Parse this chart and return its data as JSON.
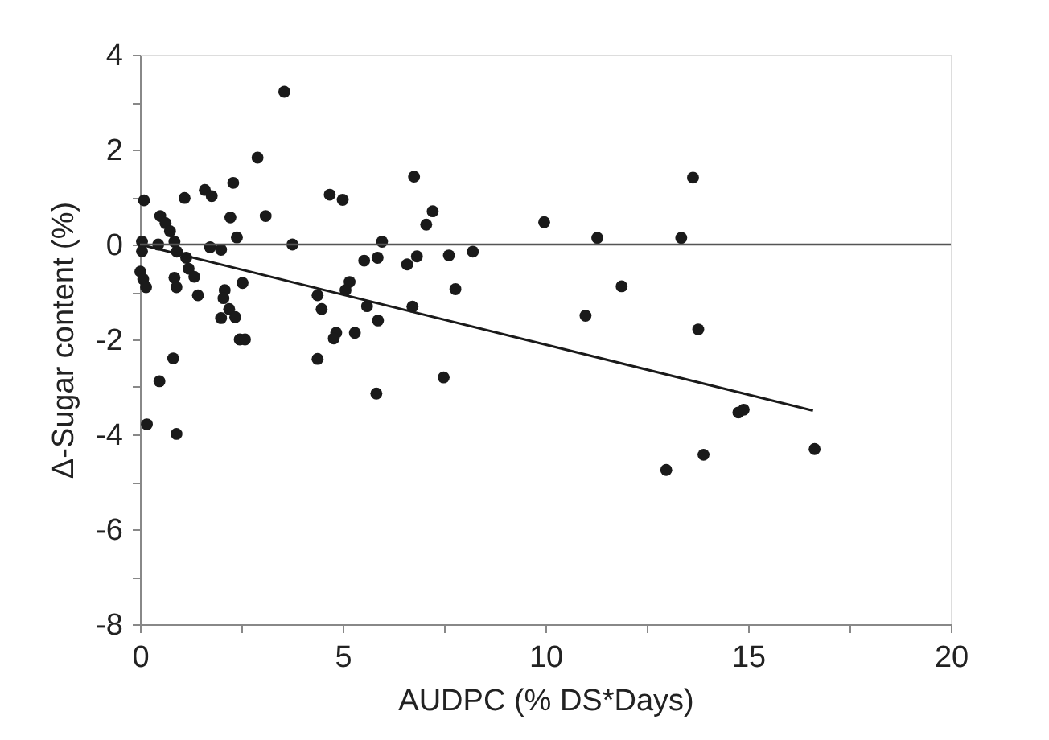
{
  "chart_data": {
    "type": "scatter",
    "xlabel": "AUDPC (% DS*Days)",
    "ylabel": "Δ-Sugar content (%)",
    "xlim": [
      0,
      20
    ],
    "ylim": [
      -8,
      4
    ],
    "xticks": [
      0,
      {
        "value": 2.5,
        "label": null
      },
      5,
      {
        "value": 7.5,
        "label": null
      },
      10,
      {
        "value": 12.5,
        "label": null
      },
      15,
      {
        "value": 17.5,
        "label": null
      },
      20
    ],
    "yticks": [
      -8,
      {
        "value": -7,
        "label": null
      },
      -6,
      {
        "value": -5,
        "label": null
      },
      -4,
      {
        "value": -3,
        "label": null
      },
      -2,
      {
        "value": -1,
        "label": null
      },
      0,
      {
        "value": 1,
        "label": null
      },
      2,
      {
        "value": 3,
        "label": null
      },
      4
    ],
    "grid": false,
    "marker": "circle",
    "ref_lines": [
      {
        "axis": "y",
        "value": 0,
        "label": null,
        "color": "#555555"
      }
    ],
    "series": [
      {
        "color": "#1a1a1a",
        "x": [
          0.1,
          0.05,
          0.05,
          0.01,
          0.08,
          0.15,
          0.45,
          0.5,
          0.63,
          0.74,
          0.85,
          0.91,
          1.14,
          1.2,
          1.34,
          0.85,
          0.9,
          1.43,
          1.1,
          1.6,
          1.77,
          1.73,
          2.0,
          2.3,
          2.23,
          2.39,
          2.9,
          3.56,
          3.1,
          3.76,
          2.09,
          2.06,
          2.53,
          2.0,
          2.2,
          2.35,
          2.46,
          2.59,
          0.82,
          0.48,
          0.17,
          0.9,
          4.38,
          4.48,
          4.38,
          4.68,
          5.0,
          4.84,
          4.78,
          5.3,
          5.17,
          5.07,
          5.53,
          5.6,
          5.87,
          5.83,
          7.49,
          5.86,
          5.97,
          6.59,
          6.83,
          6.76,
          7.22,
          7.06,
          6.72,
          7.62,
          7.78,
          8.21,
          9.97,
          11.28,
          10.99,
          11.88,
          12.98,
          13.64,
          13.35,
          13.77,
          14.76,
          14.89,
          13.9,
          16.64
        ],
        "values": [
          0.93,
          0.06,
          -0.14,
          -0.57,
          -0.73,
          -0.9,
          0.0,
          0.6,
          0.45,
          0.28,
          0.06,
          -0.15,
          -0.28,
          -0.51,
          -0.68,
          -0.7,
          -0.9,
          -1.07,
          0.98,
          1.15,
          1.02,
          -0.06,
          -0.11,
          1.3,
          0.57,
          0.15,
          1.83,
          3.22,
          0.6,
          0.0,
          -0.96,
          -1.13,
          -0.81,
          -1.55,
          -1.36,
          -1.53,
          -2.0,
          -2.0,
          -2.4,
          -2.88,
          -3.79,
          -3.99,
          -1.07,
          -1.36,
          -2.41,
          1.05,
          0.94,
          -1.86,
          -1.98,
          -1.86,
          -0.79,
          -0.96,
          -0.34,
          -1.3,
          -1.6,
          -3.14,
          -2.8,
          -0.28,
          0.06,
          -0.42,
          -0.25,
          1.43,
          0.7,
          0.42,
          -1.31,
          -0.23,
          -0.94,
          -0.15,
          0.47,
          0.14,
          -1.5,
          -0.88,
          -4.75,
          1.41,
          0.14,
          -1.79,
          -3.54,
          -3.48,
          -4.43,
          -4.31
        ]
      },
      {
        "type": "line",
        "color": "#1a1a1a",
        "x": [
          0,
          16.6
        ],
        "values": [
          0,
          -3.5
        ],
        "line_style": "solid",
        "marker": "none"
      }
    ]
  }
}
